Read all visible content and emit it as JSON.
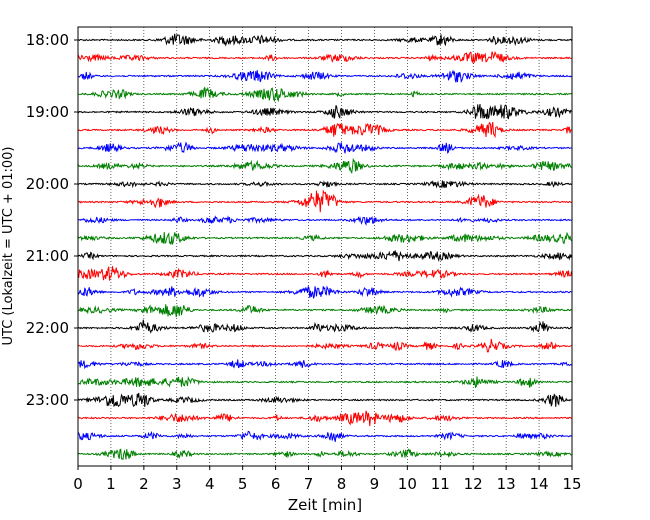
{
  "chart_data": {
    "type": "line",
    "title": "",
    "xlabel": "Zeit  [min]",
    "ylabel": "UTC (Lokalzeit = UTC + 01:00)",
    "xlim": [
      0,
      15
    ],
    "x_ticks": [
      0,
      1,
      2,
      3,
      4,
      5,
      6,
      7,
      8,
      9,
      10,
      11,
      12,
      13,
      14,
      15
    ],
    "x_tick_labels": [
      "0",
      "1",
      "2",
      "3",
      "4",
      "5",
      "6",
      "7",
      "8",
      "9",
      "10",
      "11",
      "12",
      "13",
      "14",
      "15"
    ],
    "y_tick_labels": [
      "18:00",
      "19:00",
      "20:00",
      "21:00",
      "22:00",
      "23:00"
    ],
    "grid": "vertical dotted",
    "trace_colors": [
      "#000000",
      "#ff0000",
      "#0000ff",
      "#008000"
    ],
    "traces": [
      {
        "start": "18:00"
      },
      {
        "start": "18:15"
      },
      {
        "start": "18:30"
      },
      {
        "start": "18:45"
      },
      {
        "start": "19:00"
      },
      {
        "start": "19:15"
      },
      {
        "start": "19:30"
      },
      {
        "start": "19:45"
      },
      {
        "start": "20:00"
      },
      {
        "start": "20:15"
      },
      {
        "start": "20:30"
      },
      {
        "start": "20:45"
      },
      {
        "start": "21:00"
      },
      {
        "start": "21:15"
      },
      {
        "start": "21:30"
      },
      {
        "start": "21:45"
      },
      {
        "start": "22:00"
      },
      {
        "start": "22:15"
      },
      {
        "start": "22:30"
      },
      {
        "start": "22:45"
      },
      {
        "start": "23:00"
      },
      {
        "start": "23:15"
      },
      {
        "start": "23:30"
      },
      {
        "start": "23:45"
      }
    ]
  }
}
